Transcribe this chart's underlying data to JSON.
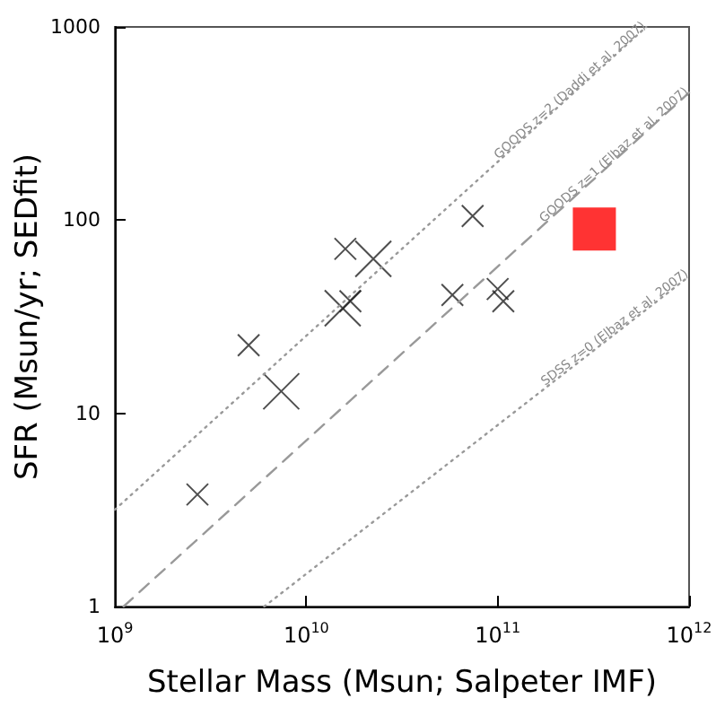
{
  "chart_data": {
    "type": "bubble",
    "xlabel": "Stellar Mass (Msun; Salpeter IMF)",
    "ylabel": "SFR (Msun/yr; SEDfit)",
    "log": "xy",
    "grid": false,
    "legend": false,
    "xlim": [
      1000000000.0,
      1000000000000.0
    ],
    "ylim": [
      1,
      1000
    ],
    "xticks": [
      {
        "value": 1000000000.0,
        "label": "10$^{9}$"
      },
      {
        "value": 10000000000.0,
        "label": "10$^{10}$"
      },
      {
        "value": 100000000000.0,
        "label": "10$^{11}$"
      },
      {
        "value": 1000000000000.0,
        "label": "10$^{12}$"
      }
    ],
    "yticks": [
      1,
      10,
      100,
      1000
    ],
    "series": [
      {
        "marker": "cross",
        "color": "#222222",
        "x": [
          2700000000.0,
          5000000000.0,
          7400000000.0,
          16000000000.0,
          22400000000.0,
          15500000000.0,
          17000000000.0,
          58000000000.0,
          74000000000.0,
          100000000000.0,
          107000000000.0
        ],
        "values": [
          3.8,
          22.5,
          13,
          71,
          63,
          35,
          38,
          41,
          105,
          44,
          38
        ],
        "sizes": [
          0.36,
          0.36,
          1,
          0.36,
          1,
          1,
          0.36,
          0.36,
          0.36,
          0.36,
          0.36
        ]
      },
      {
        "type": "scatter",
        "marker": "square",
        "color": "#ff0000",
        "x": [
          320000000000.0
        ],
        "values": [
          90
        ]
      },
      {
        "type": "line",
        "name": "GOODS z=2 (Daddi et al. 2007)",
        "line_style": "dotted",
        "color": "#999999",
        "x": [
          1000000000.0,
          597000000000.0
        ],
        "values": [
          3.17,
          1000
        ]
      },
      {
        "type": "line",
        "name": "GOODS z=1 (Elbaz et al. 2007)",
        "line_style": "dashed",
        "color": "#999999",
        "x": [
          1110000000.0,
          1000000000000.0
        ],
        "values": [
          1,
          457
        ]
      },
      {
        "type": "line",
        "name": "SDSS z=0 (Elbaz et al. 2007)",
        "line_style": "dotted",
        "color": "#999999",
        "x": [
          6030000000.0,
          1000000000000.0
        ],
        "values": [
          1,
          51.2
        ]
      }
    ]
  }
}
